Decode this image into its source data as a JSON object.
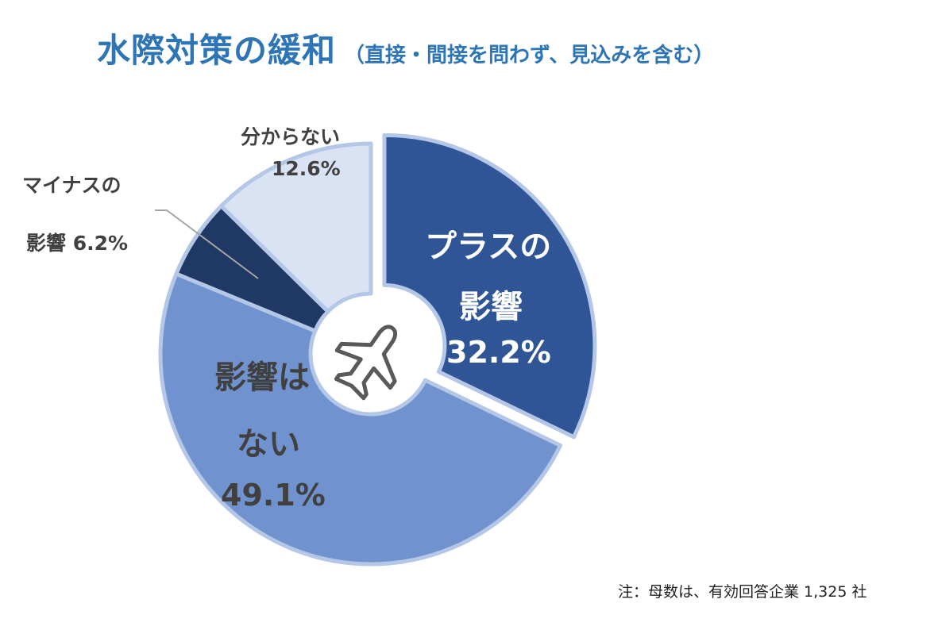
{
  "title": {
    "main": "水際対策の緩和",
    "sub": "（直接・間接を問わず、見込みを含む）",
    "color": "#2e75b6"
  },
  "labels": {
    "plus": {
      "line1": "プラスの",
      "line2": "影響",
      "pct": "32.2%"
    },
    "none": {
      "line1": "影響は",
      "line2": "ない",
      "pct": "49.1%"
    },
    "minus": {
      "line1": "マイナスの",
      "line2": "影響",
      "pct": "6.2%"
    },
    "unknown": {
      "line1": "分からない",
      "pct": "12.6%"
    }
  },
  "center_icon": "airplane-icon",
  "note": "注：母数は、有効回答企業 1,325 社",
  "chart_data": {
    "type": "pie",
    "subtype": "donut",
    "title": "水際対策の緩和（直接・間接を問わず、見込みを含む）",
    "categories": [
      "プラスの影響",
      "影響はない",
      "マイナスの影響",
      "分からない"
    ],
    "values": [
      32.2,
      49.1,
      6.2,
      12.6
    ],
    "unit": "%",
    "colors": [
      "#2f5597",
      "#7093d0",
      "#1f3864",
      "#dae3f3"
    ],
    "edge_color": "#b4c7e7",
    "exploded": [
      "プラスの影響"
    ],
    "start_angle": "12 o'clock, clockwise",
    "legend": "none (data labels)",
    "annotation": "注：母数は、有効回答企業 1,325 社",
    "n": 1325
  }
}
